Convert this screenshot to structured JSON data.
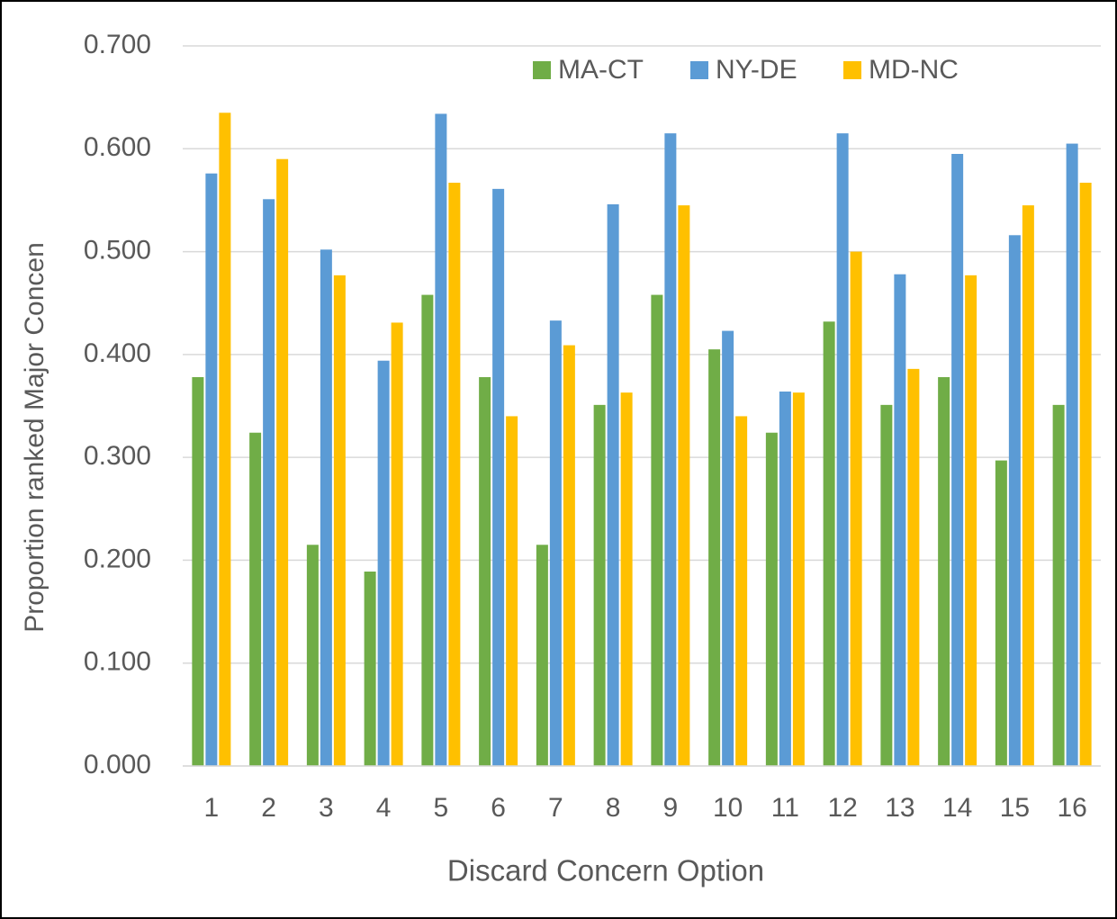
{
  "chart_data": {
    "type": "bar",
    "x_label": "Discard Concern Option",
    "y_label": "Proportion ranked Major Concen",
    "categories": [
      "1",
      "2",
      "3",
      "4",
      "5",
      "6",
      "7",
      "8",
      "9",
      "10",
      "11",
      "12",
      "13",
      "14",
      "15",
      "16"
    ],
    "series": [
      {
        "name": "MA-CT",
        "color": "#70ad47",
        "values": [
          0.378,
          0.324,
          0.215,
          0.189,
          0.458,
          0.378,
          0.215,
          0.351,
          0.458,
          0.405,
          0.324,
          0.432,
          0.351,
          0.378,
          0.297,
          0.351
        ]
      },
      {
        "name": "NY-DE",
        "color": "#5b9bd5",
        "values": [
          0.576,
          0.551,
          0.502,
          0.394,
          0.634,
          0.561,
          0.433,
          0.546,
          0.615,
          0.423,
          0.364,
          0.615,
          0.478,
          0.595,
          0.516,
          0.605
        ]
      },
      {
        "name": "MD-NC",
        "color": "#ffc000",
        "values": [
          0.635,
          0.59,
          0.477,
          0.431,
          0.567,
          0.34,
          0.409,
          0.363,
          0.545,
          0.34,
          0.363,
          0.5,
          0.386,
          0.477,
          0.545,
          0.567
        ]
      }
    ],
    "ylim": [
      0,
      0.7
    ],
    "yticks": [
      {
        "value": 0,
        "label": "0.000"
      },
      {
        "value": 0.1,
        "label": "0.100"
      },
      {
        "value": 0.2,
        "label": "0.200"
      },
      {
        "value": 0.3,
        "label": "0.300"
      },
      {
        "value": 0.4,
        "label": "0.400"
      },
      {
        "value": 0.5,
        "label": "0.500"
      },
      {
        "value": 0.6,
        "label": "0.600"
      },
      {
        "value": 0.7,
        "label": "0.700"
      }
    ],
    "grid": true,
    "legend": "top"
  }
}
